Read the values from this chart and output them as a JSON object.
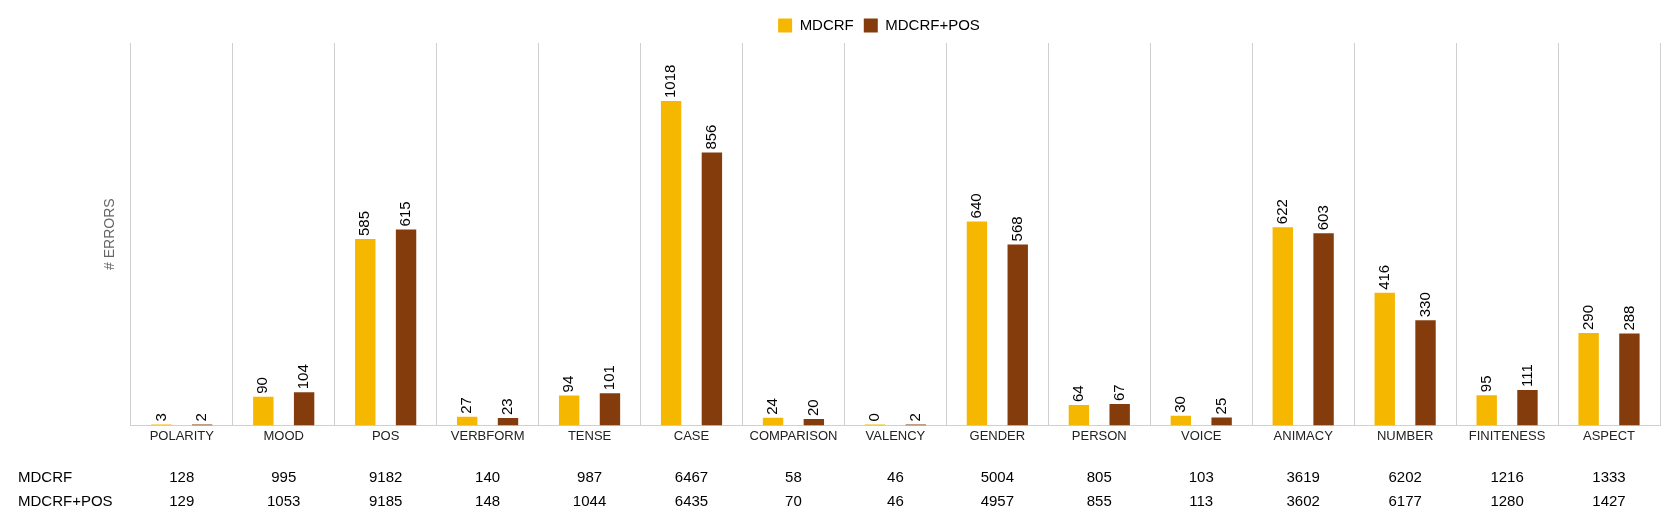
{
  "chart_data": {
    "type": "bar",
    "ylabel": "# ERRORS",
    "categories": [
      "POLARITY",
      "MOOD",
      "POS",
      "VERBFORM",
      "TENSE",
      "CASE",
      "COMPARISON",
      "VALENCY",
      "GENDER",
      "PERSON",
      "VOICE",
      "ANIMACY",
      "NUMBER",
      "FINITENESS",
      "ASPECT"
    ],
    "series": [
      {
        "name": "MDCRF",
        "color": "#f5b700",
        "values": [
          3,
          90,
          585,
          27,
          94,
          1018,
          24,
          0,
          640,
          64,
          30,
          622,
          416,
          95,
          290
        ]
      },
      {
        "name": "MDCRF+POS",
        "color": "#843c0c",
        "values": [
          2,
          104,
          615,
          23,
          101,
          856,
          20,
          2,
          568,
          67,
          25,
          603,
          330,
          111,
          288
        ]
      }
    ],
    "ylim": [
      0,
      1200
    ],
    "data_labels": true,
    "grid": "x",
    "legend": "top",
    "annotations": [
      "MDCRF",
      "128",
      "995",
      "9182",
      "140",
      "987",
      "6467",
      "58",
      "46",
      "5004",
      "805",
      "103",
      "3619",
      "6202",
      "1216",
      "1333",
      "MDCRF+POS",
      "129",
      "1053",
      "9185",
      "148",
      "1044",
      "6435",
      "70",
      "46",
      "4957",
      "855",
      "113",
      "3602",
      "6177",
      "1280",
      "1427"
    ]
  }
}
